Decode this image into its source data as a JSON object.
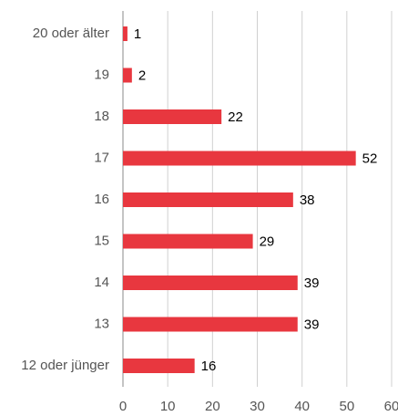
{
  "chart_data": {
    "type": "hbar",
    "categories": [
      "20 oder älter",
      "19",
      "18",
      "17",
      "16",
      "15",
      "14",
      "13",
      "12 oder jünger"
    ],
    "values": [
      1,
      2,
      22,
      52,
      38,
      29,
      39,
      39,
      16
    ],
    "color": "#e8373f",
    "xlim": [
      0,
      60
    ],
    "xticks": [
      0,
      10,
      20,
      30,
      40,
      50,
      60
    ],
    "grid": true
  }
}
